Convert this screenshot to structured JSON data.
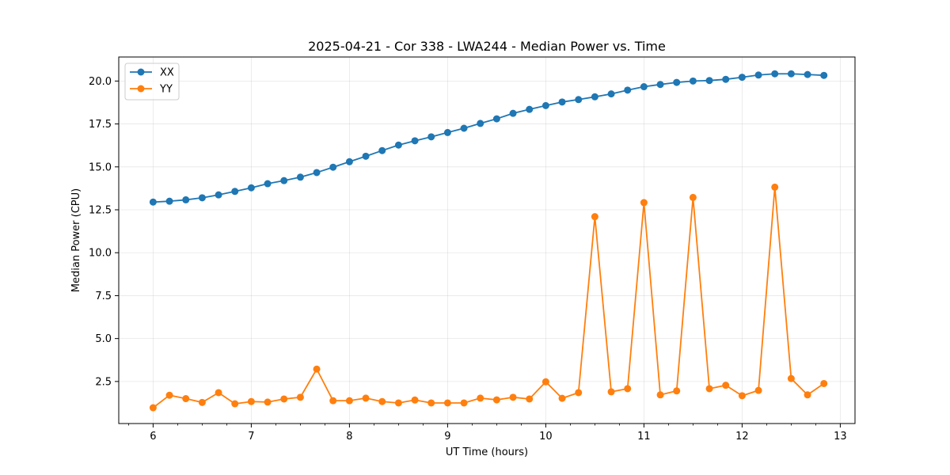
{
  "chart_data": {
    "type": "line",
    "title": "2025-04-21 - Cor 338 - LWA244 - Median Power vs. Time",
    "xlabel": "UT Time (hours)",
    "ylabel": "Median Power (CPU)",
    "xlim": [
      5.65,
      13.15
    ],
    "ylim": [
      0.05,
      21.4
    ],
    "xticks": [
      6,
      7,
      8,
      9,
      10,
      11,
      12,
      13
    ],
    "yticks": [
      2.5,
      5.0,
      7.5,
      10.0,
      12.5,
      15.0,
      17.5,
      20.0
    ],
    "ytick_labels": [
      "2.5",
      "5.0",
      "7.5",
      "10.0",
      "12.5",
      "15.0",
      "17.5",
      "20.0"
    ],
    "grid": true,
    "legend_position": "top-left",
    "x": [
      6.0,
      6.1667,
      6.3333,
      6.5,
      6.6667,
      6.8333,
      7.0,
      7.1667,
      7.3333,
      7.5,
      7.6667,
      7.8333,
      8.0,
      8.1667,
      8.3333,
      8.5,
      8.6667,
      8.8333,
      9.0,
      9.1667,
      9.3333,
      9.5,
      9.6667,
      9.8333,
      10.0,
      10.1667,
      10.3333,
      10.5,
      10.6667,
      10.8333,
      11.0,
      11.1667,
      11.3333,
      11.5,
      11.6667,
      11.8333,
      12.0,
      12.1667,
      12.3333,
      12.5,
      12.6667,
      12.8333
    ],
    "series": [
      {
        "name": "XX",
        "color": "#1f77b4",
        "values": [
          12.95,
          13.0,
          13.08,
          13.2,
          13.37,
          13.57,
          13.78,
          14.02,
          14.2,
          14.4,
          14.67,
          14.98,
          15.3,
          15.62,
          15.95,
          16.27,
          16.52,
          16.75,
          17.0,
          17.25,
          17.53,
          17.8,
          18.12,
          18.35,
          18.57,
          18.78,
          18.92,
          19.08,
          19.25,
          19.47,
          19.67,
          19.8,
          19.92,
          20.0,
          20.03,
          20.1,
          20.22,
          20.35,
          20.42,
          20.42,
          20.38,
          20.33
        ]
      },
      {
        "name": "YY",
        "color": "#ff7f0e",
        "values": [
          0.97,
          1.7,
          1.5,
          1.28,
          1.85,
          1.2,
          1.33,
          1.3,
          1.48,
          1.58,
          3.22,
          1.38,
          1.38,
          1.53,
          1.33,
          1.25,
          1.42,
          1.25,
          1.25,
          1.25,
          1.53,
          1.43,
          1.58,
          1.48,
          2.48,
          1.52,
          1.85,
          12.1,
          1.9,
          2.08,
          12.92,
          1.72,
          1.95,
          13.22,
          2.08,
          2.28,
          1.67,
          1.98,
          13.82,
          2.67,
          1.72,
          2.38
        ]
      }
    ]
  }
}
